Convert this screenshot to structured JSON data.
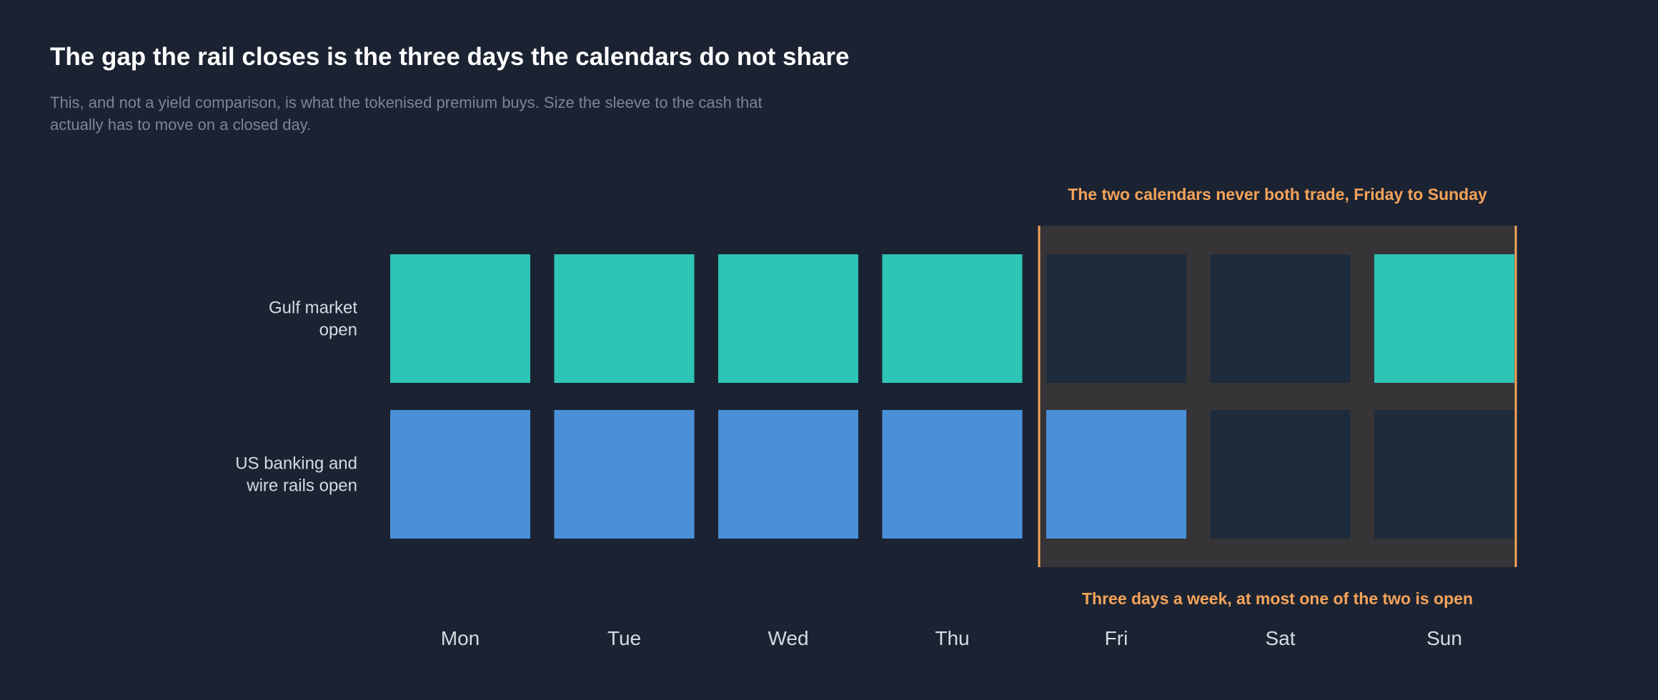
{
  "title": "The gap the rail closes is the three days the calendars do not share",
  "subtitle": "This, and not a yield comparison, is what the tokenised premium buys. Size the sleeve to the cash that actually has to move on a closed day.",
  "colors": {
    "background": "#1b2332",
    "gulf_open": "#2ec4b6",
    "us_open": "#4a90d9",
    "closed": "#1e2b3c",
    "highlight_band": "#363436",
    "accent": "#f4a35a"
  },
  "chart_data": {
    "type": "heatmap",
    "categories": [
      "Mon",
      "Tue",
      "Wed",
      "Thu",
      "Fri",
      "Sat",
      "Sun"
    ],
    "series": [
      {
        "name": "Gulf market open",
        "label_lines": [
          "Gulf market",
          "open"
        ],
        "values": [
          1,
          1,
          1,
          1,
          0,
          0,
          1
        ]
      },
      {
        "name": "US banking and wire rails open",
        "label_lines": [
          "US banking and",
          "wire rails open"
        ],
        "values": [
          1,
          1,
          1,
          1,
          1,
          0,
          0
        ]
      }
    ],
    "highlight": {
      "from": "Fri",
      "to": "Sun",
      "top_annotation": "The two calendars never both trade, Friday to Sunday",
      "bottom_annotation": "Three days a week, at most one of the two is open"
    }
  }
}
